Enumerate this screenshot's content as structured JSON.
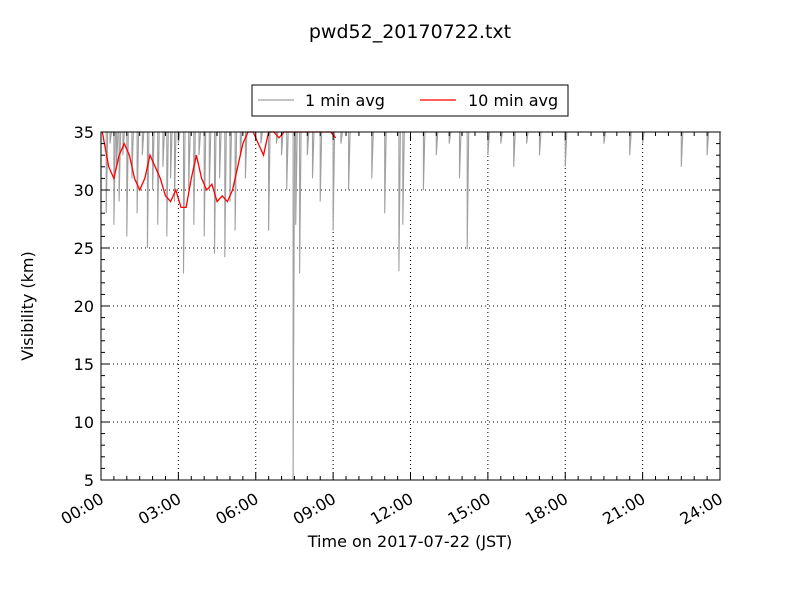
{
  "chart_data": {
    "type": "line",
    "title": "pwd52_20170722.txt",
    "xlabel": "Time on 2017-07-22 (JST)",
    "ylabel": "Visibility (km)",
    "xlim": [
      "00:00",
      "24:00"
    ],
    "ylim": [
      5,
      35
    ],
    "x_ticks": [
      "00:00",
      "03:00",
      "06:00",
      "09:00",
      "12:00",
      "15:00",
      "18:00",
      "21:00",
      "24:00"
    ],
    "y_ticks": [
      5,
      10,
      15,
      20,
      25,
      30,
      35
    ],
    "grid": true,
    "legend_position": "top-center",
    "series": [
      {
        "name": "1 min avg",
        "color": "#a0a0a0",
        "note_x": "hours",
        "x": [
          0.05,
          0.2,
          0.35,
          0.5,
          0.6,
          0.7,
          0.85,
          1.0,
          1.2,
          1.4,
          1.6,
          1.8,
          2.0,
          2.2,
          2.4,
          2.55,
          2.7,
          2.85,
          3.0,
          3.2,
          3.4,
          3.6,
          3.8,
          4.0,
          4.2,
          4.4,
          4.6,
          4.8,
          5.0,
          5.2,
          5.4,
          5.6,
          5.8,
          6.0,
          6.2,
          6.5,
          6.8,
          7.0,
          7.2,
          7.4,
          7.45,
          7.55,
          7.7,
          8.0,
          8.2,
          8.5,
          8.8,
          9.0,
          9.3,
          9.6,
          10.0,
          10.5,
          11.0,
          11.4,
          11.55,
          11.7,
          12.0,
          12.5,
          13.0,
          13.5,
          13.9,
          14.2,
          14.5,
          15.0,
          15.5,
          16.0,
          16.5,
          17.0,
          17.5,
          18.0,
          18.5,
          19.0,
          19.5,
          20.0,
          20.5,
          21.0,
          21.5,
          22.0,
          22.5,
          23.0,
          23.5,
          24.0
        ],
        "y": [
          35,
          28,
          34,
          27,
          32,
          29,
          33,
          26,
          31,
          28,
          33,
          25,
          30,
          27,
          32,
          26,
          31,
          29,
          34,
          22.8,
          30,
          27,
          33,
          26,
          30,
          24.5,
          31,
          24.2,
          29,
          26.5,
          33,
          31,
          35,
          35,
          34,
          26.5,
          34,
          33,
          30,
          35,
          5,
          27,
          22.8,
          33,
          31,
          29,
          35,
          26.5,
          34,
          30,
          35,
          31,
          28,
          35,
          23,
          27,
          35,
          30,
          33,
          34,
          31,
          24.9,
          35,
          33,
          34,
          32,
          34,
          33,
          35,
          32,
          35,
          35,
          34,
          35,
          33,
          34,
          35,
          35,
          32,
          35,
          33,
          35
        ]
      },
      {
        "name": "10 min avg",
        "color": "#ff0000",
        "x": [
          0.05,
          0.3,
          0.5,
          0.7,
          0.9,
          1.1,
          1.3,
          1.5,
          1.7,
          1.9,
          2.1,
          2.3,
          2.5,
          2.7,
          2.9,
          3.1,
          3.3,
          3.5,
          3.7,
          3.9,
          4.1,
          4.3,
          4.5,
          4.7,
          4.9,
          5.1,
          5.3,
          5.5,
          5.7,
          5.9,
          6.1,
          6.3,
          6.5,
          6.7,
          6.9,
          7.1,
          7.3,
          7.5,
          7.7,
          7.9,
          8.1,
          8.3,
          8.5,
          8.7,
          8.9,
          9.1
        ],
        "y": [
          35,
          32,
          31,
          33,
          34,
          33,
          31,
          30,
          31,
          33,
          32,
          31,
          29.5,
          29,
          30,
          28.5,
          28.5,
          31,
          33,
          31,
          30,
          30.5,
          29,
          29.5,
          29,
          30,
          32,
          34,
          35,
          35,
          34,
          33,
          35,
          35,
          34.5,
          35,
          35,
          35,
          35,
          35,
          35,
          35,
          35,
          35,
          35,
          34.5
        ]
      }
    ]
  }
}
